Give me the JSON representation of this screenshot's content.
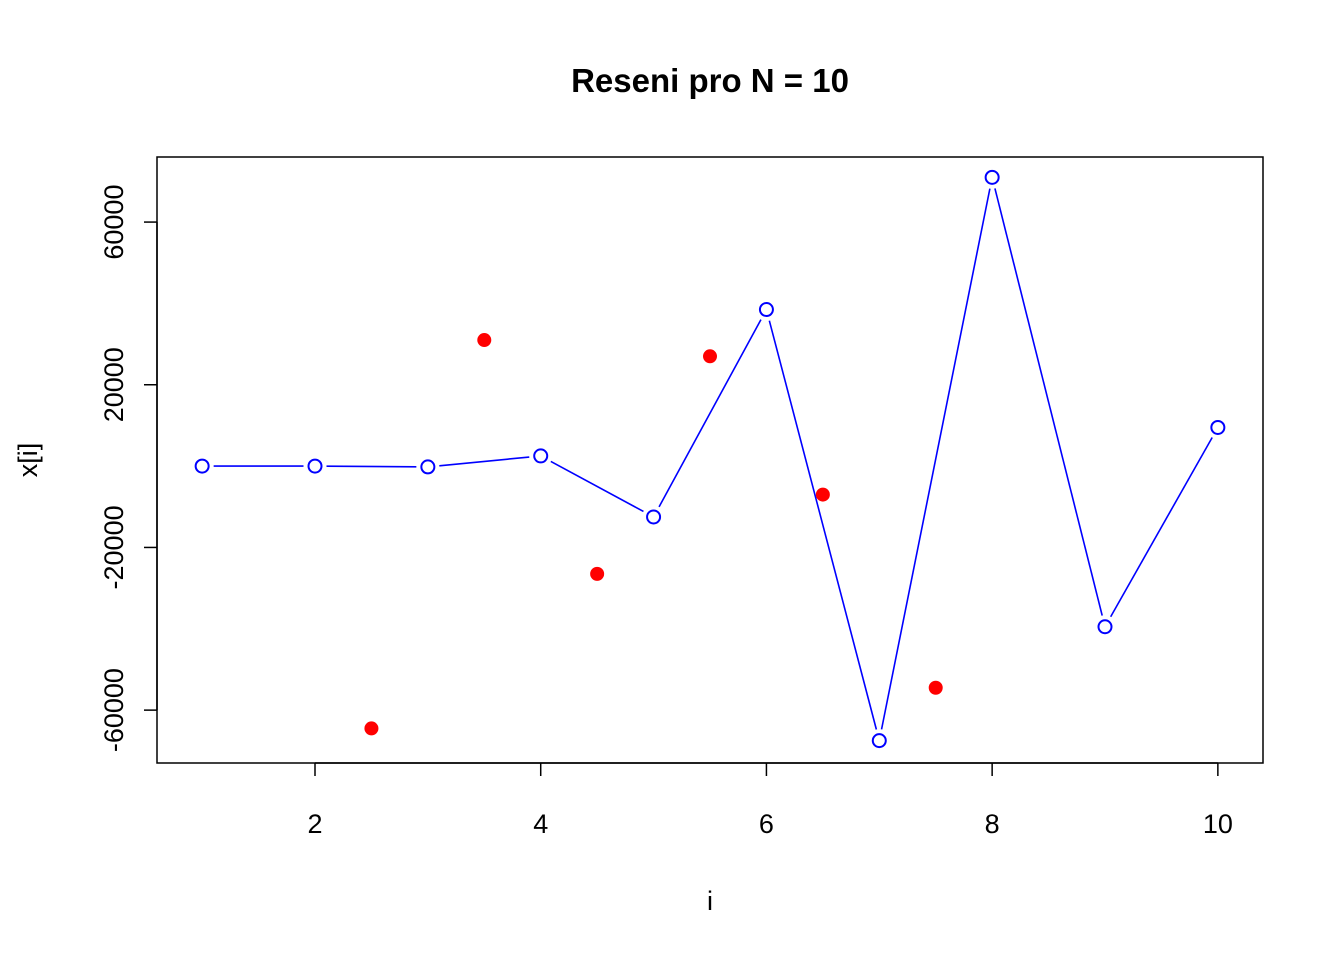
{
  "chart_data": {
    "type": "scatter",
    "title": "Reseni pro N = 10",
    "xlabel": "i",
    "ylabel": "x[i]",
    "xlim": [
      0.6,
      10.4
    ],
    "ylim": [
      -73000,
      76000
    ],
    "x_ticks": [
      2,
      4,
      6,
      8,
      10
    ],
    "y_ticks": [
      -60000,
      -20000,
      20000,
      60000
    ],
    "grid": false,
    "legend": "none",
    "series": [
      {
        "style": "line-open-circles",
        "color": "#0000ff",
        "x": [
          1,
          2,
          3,
          4,
          5,
          6,
          7,
          8,
          9,
          10
        ],
        "y": [
          0,
          0,
          -200,
          2500,
          -12500,
          38500,
          -67500,
          71000,
          -39500,
          9500
        ]
      },
      {
        "style": "filled-points",
        "color": "#ff0000",
        "x": [
          2.5,
          3.5,
          4.5,
          5.5,
          6.5,
          7.5
        ],
        "y": [
          -64500,
          31000,
          -26500,
          27000,
          -7000,
          -54500
        ]
      }
    ]
  }
}
